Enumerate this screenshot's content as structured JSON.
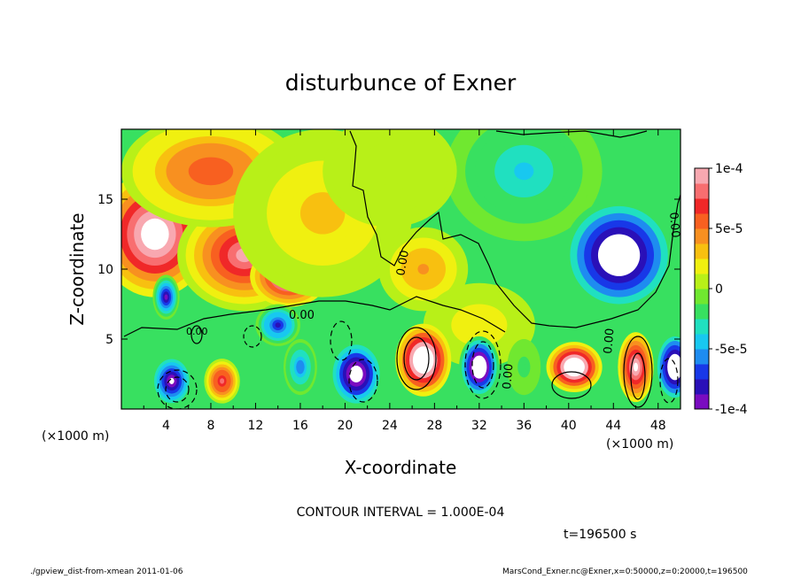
{
  "figure": {
    "title": "disturbunce of Exner",
    "contour_interval": "CONTOUR INTERVAL = 1.000E-04",
    "time": "t=196500 s",
    "footer_left": "./gpview_dist-from-xmean  2011-01-06",
    "footer_right": "MarsCond_Exner.nc@Exner,x=0:50000,z=0:20000,t=196500"
  },
  "chart_data": {
    "type": "heatmap",
    "title": "disturbunce of Exner",
    "xlabel": "X-coordinate",
    "ylabel": "Z-coordinate",
    "x_unit": "(×1000 m)",
    "y_unit": "(×1000 m)",
    "xlim": [
      0,
      50
    ],
    "ylim": [
      0,
      20
    ],
    "x_ticks": [
      4,
      8,
      12,
      16,
      20,
      24,
      28,
      32,
      36,
      40,
      44,
      48
    ],
    "y_ticks": [
      5,
      10,
      15
    ],
    "colorbar": {
      "range": [
        -0.0001,
        0.0001
      ],
      "tick_labels": [
        "1e-4",
        "5e-5",
        "0",
        "-5e-5",
        "-1e-4"
      ],
      "tick_values": [
        0.0001,
        5e-05,
        0,
        -5e-05,
        -0.0001
      ],
      "colors": [
        "#7a0cc0",
        "#2a10b8",
        "#1838e8",
        "#1e8cf0",
        "#18c8f0",
        "#20e0c0",
        "#38e060",
        "#70e830",
        "#b8f018",
        "#f0f010",
        "#f8c010",
        "#f89020",
        "#f86020",
        "#f02828",
        "#f86e70",
        "#f8a8b0"
      ]
    },
    "contour_labels": [
      "0.00",
      "0.00",
      "0.00",
      "0.00",
      "0.00",
      "0.00"
    ],
    "fields": [
      {
        "x": 3,
        "z": 12.5,
        "value": 0.00013,
        "sx": 5,
        "sz": 4.5
      },
      {
        "x": 11,
        "z": 11,
        "value": 9e-05,
        "sx": 6,
        "sz": 4
      },
      {
        "x": 15,
        "z": 9.5,
        "value": 0.00012,
        "sx": 3.5,
        "sz": 2.2
      },
      {
        "x": 8,
        "z": 17,
        "value": 6e-05,
        "sx": 8,
        "sz": 4
      },
      {
        "x": 18,
        "z": 14,
        "value": 3e-05,
        "sx": 8,
        "sz": 6
      },
      {
        "x": 27,
        "z": 10,
        "value": 4e-05,
        "sx": 4,
        "sz": 3
      },
      {
        "x": 36,
        "z": 17,
        "value": -4e-05,
        "sx": 7,
        "sz": 5
      },
      {
        "x": 44.5,
        "z": 11,
        "value": -0.00014,
        "sx": 5,
        "sz": 4
      },
      {
        "x": 24,
        "z": 17,
        "value": 1e-05,
        "sx": 6,
        "sz": 4
      },
      {
        "x": 32,
        "z": 6,
        "value": 2e-05,
        "sx": 5,
        "sz": 3
      },
      {
        "x": 4,
        "z": 8,
        "value": -9e-05,
        "sx": 1.2,
        "sz": 1.6
      },
      {
        "x": 14,
        "z": 6,
        "value": -8e-05,
        "sx": 2,
        "sz": 1.5
      },
      {
        "x": 16,
        "z": 3,
        "value": -6e-05,
        "sx": 1.5,
        "sz": 2
      },
      {
        "x": 9,
        "z": 2,
        "value": 8e-05,
        "sx": 1.6,
        "sz": 1.6
      },
      {
        "x": 4.5,
        "z": 2,
        "value": -0.00011,
        "sx": 1.8,
        "sz": 1.8
      },
      {
        "x": 21,
        "z": 2.5,
        "value": -0.00013,
        "sx": 2.4,
        "sz": 2.4
      },
      {
        "x": 27,
        "z": 3.5,
        "value": 0.00014,
        "sx": 2.5,
        "sz": 2.6
      },
      {
        "x": 32,
        "z": 3,
        "value": -0.00015,
        "sx": 1.8,
        "sz": 2.2
      },
      {
        "x": 40.5,
        "z": 3,
        "value": 0.00014,
        "sx": 2.5,
        "sz": 1.8
      },
      {
        "x": 46,
        "z": 3,
        "value": 0.00011,
        "sx": 1.6,
        "sz": 2.5
      },
      {
        "x": 49.5,
        "z": 3,
        "value": -0.00014,
        "sx": 1.8,
        "sz": 2.5
      },
      {
        "x": 36,
        "z": 3,
        "value": -2e-05,
        "sx": 1.5,
        "sz": 2
      }
    ]
  }
}
